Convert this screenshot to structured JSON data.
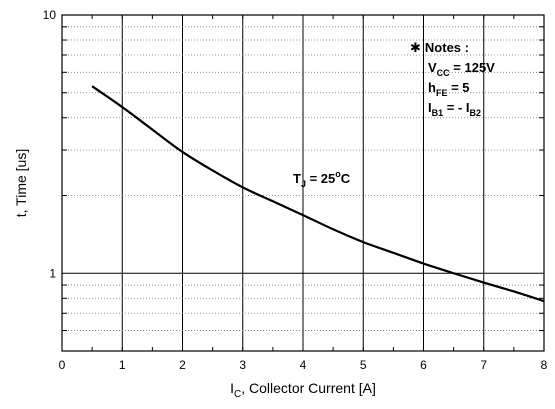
{
  "chart_data": {
    "type": "line",
    "xlabel_main": "I",
    "xlabel_sub": "C",
    "xlabel_rest": ", Collector Current [A]",
    "ylabel": "t, Time [us]",
    "x_scale": "linear",
    "y_scale": "log",
    "xlim": [
      0,
      8
    ],
    "ylim": [
      0.5,
      10
    ],
    "x_ticks": [
      "0",
      "1",
      "2",
      "3",
      "4",
      "5",
      "6",
      "7",
      "8"
    ],
    "y_ticks": [
      "1",
      "10"
    ],
    "grid": true,
    "series": [
      {
        "x": [
          0.5,
          1,
          1.5,
          2,
          2.5,
          3,
          3.5,
          4,
          4.5,
          5,
          5.5,
          6,
          6.5,
          7,
          7.5,
          8
        ],
        "y": [
          5.3,
          4.4,
          3.6,
          2.95,
          2.5,
          2.15,
          1.9,
          1.68,
          1.48,
          1.32,
          1.2,
          1.09,
          1.0,
          0.92,
          0.85,
          0.78
        ]
      }
    ],
    "annotations": {
      "tj": {
        "main": "T",
        "sub": "J",
        "rest": " = 25",
        "deg": "o",
        "unit": "C"
      },
      "notes": {
        "title": "Notes :",
        "star": "✱",
        "lines": [
          {
            "main": "V",
            "sub": "CC",
            "rest": " = 125V"
          },
          {
            "main": "h",
            "sub": "FE",
            "rest": " = 5"
          },
          {
            "main": "I",
            "sub": "B1",
            "rest": " = - I",
            "sub2": "B2"
          }
        ]
      }
    }
  }
}
